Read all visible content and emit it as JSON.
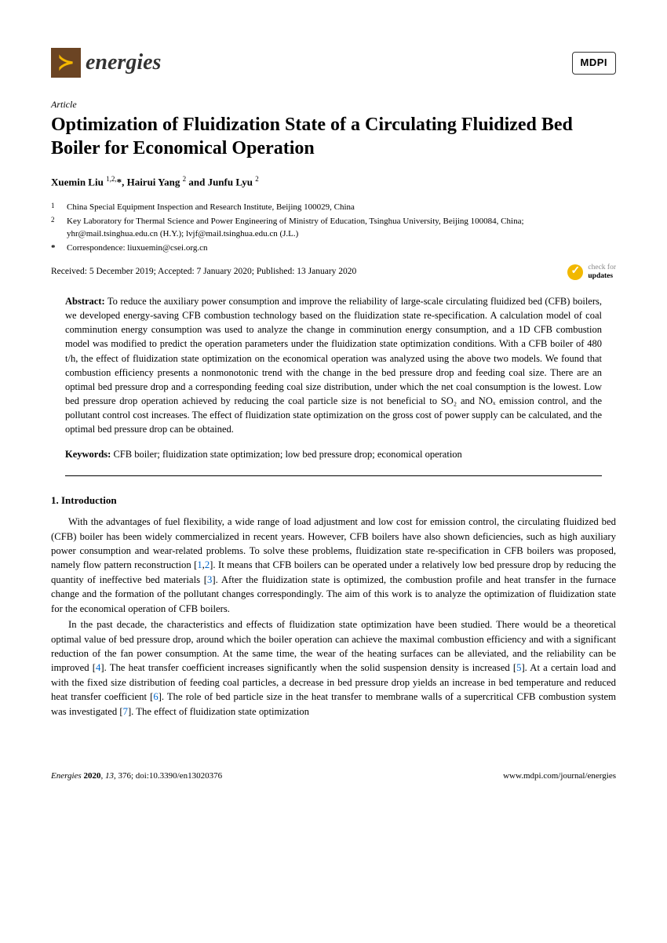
{
  "header": {
    "journal_name": "energies",
    "publisher": "MDPI"
  },
  "article_type": "Article",
  "title": "Optimization of Fluidization State of a Circulating Fluidized Bed Boiler for Economical Operation",
  "authors_html": "Xuemin Liu <sup>1,2,</sup>*, Hairui Yang <sup>2</sup> and Junfu Lyu <sup>2</sup>",
  "affiliations": [
    {
      "num": "1",
      "text": "China Special Equipment Inspection and Research Institute, Beijing 100029, China"
    },
    {
      "num": "2",
      "text": "Key Laboratory for Thermal Science and Power Engineering of Ministry of Education, Tsinghua University, Beijing 100084, China; yhr@mail.tsinghua.edu.cn (H.Y.); lvjf@mail.tsinghua.edu.cn (J.L.)"
    }
  ],
  "correspondence": "Correspondence: liuxuemin@csei.org.cn",
  "dates": "Received: 5 December 2019; Accepted: 7 January 2020; Published: 13 January 2020",
  "updates": {
    "l1": "check for",
    "l2": "updates"
  },
  "abstract_label": "Abstract:",
  "abstract": "To reduce the auxiliary power consumption and improve the reliability of large-scale circulating fluidized bed (CFB) boilers, we developed energy-saving CFB combustion technology based on the fluidization state re-specification. A calculation model of coal comminution energy consumption was used to analyze the change in comminution energy consumption, and a 1D CFB combustion model was modified to predict the operation parameters under the fluidization state optimization conditions. With a CFB boiler of 480 t/h, the effect of fluidization state optimization on the economical operation was analyzed using the above two models. We found that combustion efficiency presents a nonmonotonic trend with the change in the bed pressure drop and feeding coal size. There are an optimal bed pressure drop and a corresponding feeding coal size distribution, under which the net coal consumption is the lowest. Low bed pressure drop operation achieved by reducing the coal particle size is not beneficial to SO₂ and NOₓ emission control, and the pollutant control cost increases. The effect of fluidization state optimization on the gross cost of power supply can be calculated, and the optimal bed pressure drop can be obtained.",
  "keywords_label": "Keywords:",
  "keywords": "CFB boiler; fluidization state optimization; low bed pressure drop; economical operation",
  "section1_head": "1. Introduction",
  "para1_parts": {
    "p1": "With the advantages of fuel flexibility, a wide range of load adjustment and low cost for emission control, the circulating fluidized bed (CFB) boiler has been widely commercialized in recent years. However, CFB boilers have also shown deficiencies, such as high auxiliary power consumption and wear-related problems. To solve these problems, fluidization state re-specification in CFB boilers was proposed, namely flow pattern reconstruction [",
    "r1": "1",
    "c1": ",",
    "r2": "2",
    "p2": "]. It means that CFB boilers can be operated under a relatively low bed pressure drop by reducing the quantity of ineffective bed materials [",
    "r3": "3",
    "p3": "]. After the fluidization state is optimized, the combustion profile and heat transfer in the furnace change and the formation of the pollutant changes correspondingly. The aim of this work is to analyze the optimization of fluidization state for the economical operation of CFB boilers."
  },
  "para2_parts": {
    "p1": "In the past decade, the characteristics and effects of fluidization state optimization have been studied. There would be a theoretical optimal value of bed pressure drop, around which the boiler operation can achieve the maximal combustion efficiency and with a significant reduction of the fan power consumption. At the same time, the wear of the heating surfaces can be alleviated, and the reliability can be improved [",
    "r4": "4",
    "p2": "]. The heat transfer coefficient increases significantly when the solid suspension density is increased [",
    "r5": "5",
    "p3": "]. At a certain load and with the fixed size distribution of feeding coal particles, a decrease in bed pressure drop yields an increase in bed temperature and reduced heat transfer coefficient [",
    "r6": "6",
    "p4": "]. The role of bed particle size in the heat transfer to membrane walls of a supercritical CFB combustion system was investigated [",
    "r7": "7",
    "p5": "]. The effect of fluidization state optimization"
  },
  "footer": {
    "left_journal": "Energies",
    "left_year": "2020",
    "left_vol": "13",
    "left_page": "376",
    "left_doi": "doi:10.3390/en13020376",
    "right": "www.mdpi.com/journal/energies"
  },
  "colors": {
    "link": "#0066cc",
    "logo_bg": "#6b4423",
    "bolt": "#f5b800"
  }
}
